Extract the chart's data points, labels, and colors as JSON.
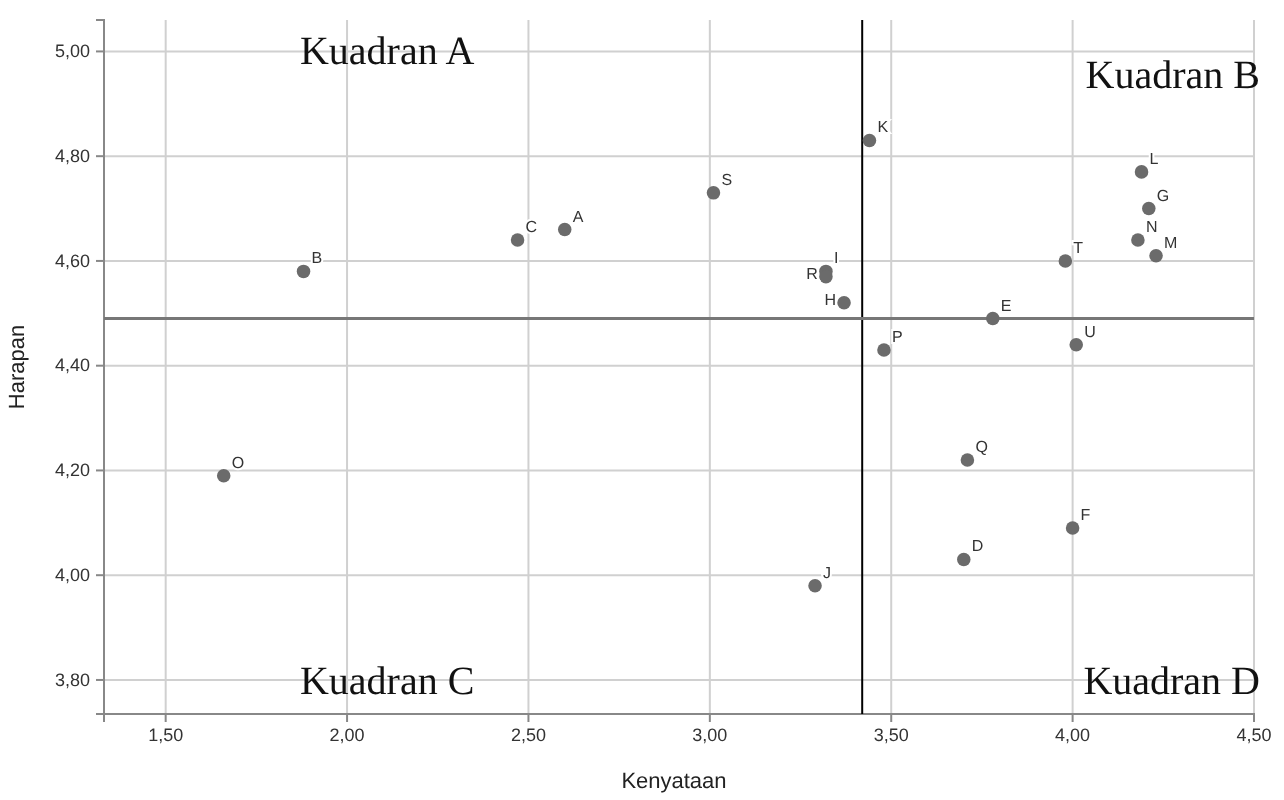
{
  "chart_data": {
    "type": "scatter",
    "xlabel": "Kenyataan",
    "ylabel": "Harapan",
    "x": [
      2.6,
      1.88,
      2.47,
      3.7,
      3.78,
      4.0,
      4.21,
      3.37,
      3.32,
      3.29,
      3.44,
      4.19,
      4.23,
      4.18,
      1.66,
      3.48,
      3.71,
      3.32,
      3.01,
      3.98,
      4.01
    ],
    "values": [
      4.66,
      4.58,
      4.64,
      4.03,
      4.49,
      4.09,
      4.7,
      4.52,
      4.58,
      3.98,
      4.83,
      4.77,
      4.61,
      4.64,
      4.19,
      4.43,
      4.22,
      4.57,
      4.73,
      4.6,
      4.44
    ],
    "value_labels": [
      "A",
      "B",
      "C",
      "D",
      "E",
      "F",
      "G",
      "H",
      "I",
      "J",
      "K",
      "L",
      "M",
      "N",
      "O",
      "P",
      "Q",
      "R",
      "S",
      "T",
      "U"
    ],
    "color": "#6b6b6b",
    "marker": "circle",
    "xlim": [
      1.33,
      4.5
    ],
    "ylim": [
      3.735,
      5.06
    ],
    "xticks": [
      {
        "value": 1.5,
        "label": "1,50"
      },
      {
        "value": 2,
        "label": "2,00"
      },
      {
        "value": 2.5,
        "label": "2,50"
      },
      {
        "value": 3,
        "label": "3,00"
      },
      {
        "value": 3.5,
        "label": "3,50"
      },
      {
        "value": 4,
        "label": "4,00"
      },
      {
        "value": 4.5,
        "label": "4,50"
      }
    ],
    "yticks": [
      {
        "value": 3.8,
        "label": "3,80"
      },
      {
        "value": 4,
        "label": "4,00"
      },
      {
        "value": 4.2,
        "label": "4,20"
      },
      {
        "value": 4.4,
        "label": "4,40"
      },
      {
        "value": 4.6,
        "label": "4,60"
      },
      {
        "value": 4.8,
        "label": "4,80"
      },
      {
        "value": 5,
        "label": "5,00"
      }
    ],
    "grid": true,
    "ref_lines": [
      {
        "axis": "x",
        "value": 3.42,
        "color": "#000000"
      },
      {
        "axis": "y",
        "value": 4.49,
        "color": "#777777"
      }
    ],
    "annotations": [
      "Kuadran A",
      "Kuadran B",
      "Kuadran C",
      "Kuadran D"
    ]
  }
}
